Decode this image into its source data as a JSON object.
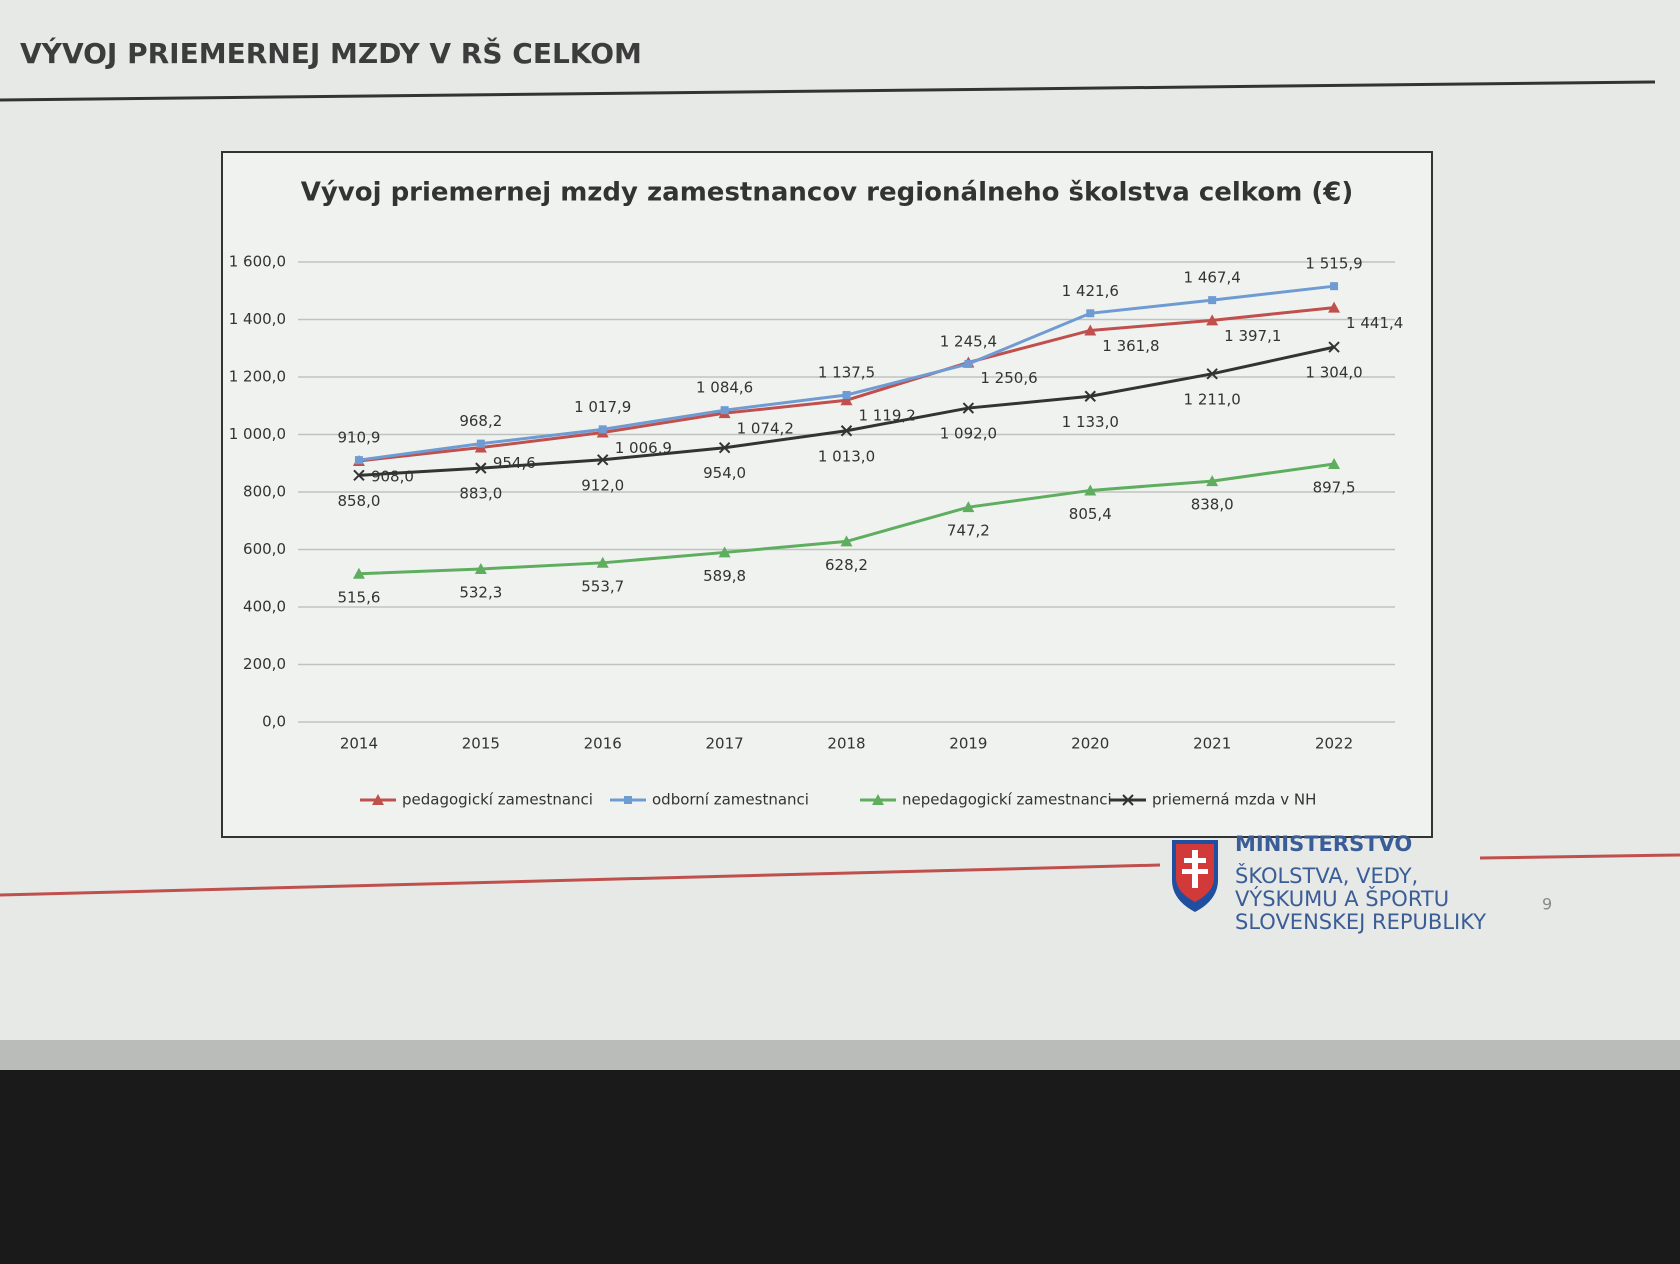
{
  "slide": {
    "title": "VÝVOJ PRIEMERNEJ  MZDY V RŠ CELKOM",
    "logo_lines": [
      "MINISTERSTVO",
      "ŠKOLSTVA, VEDY,",
      "VÝSKUMU A ŠPORTU",
      "SLOVENSKEJ REPUBLIKY"
    ],
    "page_number": "9"
  },
  "chart_data": {
    "type": "line",
    "title": "Vývoj priemernej mzdy zamestnancov regionálneho školstva celkom (€)",
    "categories": [
      "2014",
      "2015",
      "2016",
      "2017",
      "2018",
      "2019",
      "2020",
      "2021",
      "2022"
    ],
    "ylim": [
      0,
      1600
    ],
    "yticks": [
      {
        "value": 0,
        "label": "0,0"
      },
      {
        "value": 200,
        "label": "200,0"
      },
      {
        "value": 400,
        "label": "400,0"
      },
      {
        "value": 600,
        "label": "600,0"
      },
      {
        "value": 800,
        "label": "800,0"
      },
      {
        "value": 1000,
        "label": "1 000,0"
      },
      {
        "value": 1200,
        "label": "1 200,0"
      },
      {
        "value": 1400,
        "label": "1 400,0"
      },
      {
        "value": 1600,
        "label": "1 600,0"
      }
    ],
    "grid": true,
    "legend": "bottom",
    "series": [
      {
        "name": "pedagogickí zamestnanci",
        "color": "#c0504d",
        "marker": "triangle",
        "values": [
          908.0,
          954.6,
          1006.9,
          1074.2,
          1119.2,
          1250.6,
          1361.8,
          1397.1,
          1441.4
        ],
        "value_labels": [
          "908,0",
          "954,6",
          "1 006,9",
          "1 074,2",
          "1 119,2",
          "1 250,6",
          "1 361,8",
          "1 397,1",
          "1 441,4"
        ]
      },
      {
        "name": "odborní zamestnanci",
        "color": "#6f9bd3",
        "marker": "square",
        "values": [
          910.9,
          968.2,
          1017.9,
          1084.6,
          1137.5,
          1245.4,
          1421.6,
          1467.4,
          1515.9
        ],
        "value_labels": [
          "910,9",
          "968,2",
          "1 017,9",
          "1 084,6",
          "1 137,5",
          "1 245,4",
          "1 421,6",
          "1 467,4",
          "1 515,9"
        ]
      },
      {
        "name": "nepedagogickí zamestnanci",
        "color": "#5fae5f",
        "marker": "triangle",
        "values": [
          515.6,
          532.3,
          553.7,
          589.8,
          628.2,
          747.2,
          805.4,
          838.0,
          897.5
        ],
        "value_labels": [
          "515,6",
          "532,3",
          "553,7",
          "589,8",
          "628,2",
          "747,2",
          "805,4",
          "838,0",
          "897,5"
        ]
      },
      {
        "name": "priemerná mzda v NH",
        "color": "#333333",
        "marker": "x",
        "values": [
          858.0,
          883.0,
          912.0,
          954.0,
          1013.0,
          1092.0,
          1133.0,
          1211.0,
          1304.0
        ],
        "value_labels": [
          "858,0",
          "883,0",
          "912,0",
          "954,0",
          "1 013,0",
          "1 092,0",
          "1 133,0",
          "1 211,0",
          "1 304,0"
        ]
      }
    ]
  }
}
